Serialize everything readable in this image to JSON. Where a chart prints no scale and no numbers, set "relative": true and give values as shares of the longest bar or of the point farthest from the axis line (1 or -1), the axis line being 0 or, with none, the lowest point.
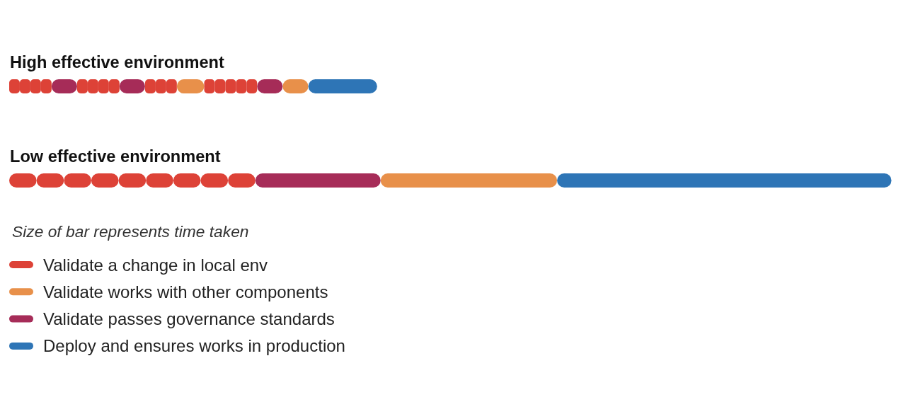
{
  "chart_data": {
    "type": "bar",
    "orientation": "horizontal",
    "relative": true,
    "stacked": true,
    "categories": [
      "High effective environment",
      "Low effective environment"
    ],
    "series": [
      {
        "name": "Validate a change in local env",
        "color": "#dd4237",
        "values": [
          0.012,
          0.031
        ]
      },
      {
        "color": "#dd4237",
        "values": [
          0.012,
          0.031
        ]
      },
      {
        "color": "#dd4237",
        "values": [
          0.012,
          0.031
        ]
      },
      {
        "color": "#dd4237",
        "values": [
          0.012,
          0.031
        ]
      },
      {
        "color": "#a62c58",
        "values": [
          0.029,
          null
        ]
      },
      {
        "color": "#dd4237",
        "values": [
          0.012,
          0.031
        ]
      },
      {
        "color": "#dd4237",
        "values": [
          0.012,
          0.031
        ]
      },
      {
        "color": "#dd4237",
        "values": [
          0.012,
          0.031
        ]
      },
      {
        "color": "#dd4237",
        "values": [
          0.012,
          0.031
        ]
      },
      {
        "color": "#a62c58",
        "values": [
          0.029,
          null
        ]
      },
      {
        "color": "#dd4237",
        "values": [
          0.012,
          0.031
        ]
      },
      {
        "color": "#dd4237",
        "values": [
          0.012,
          null
        ]
      },
      {
        "color": "#dd4237",
        "values": [
          0.012,
          null
        ]
      },
      {
        "name": "Validate works with other components",
        "color": "#e8904a",
        "values": [
          0.031,
          null
        ]
      },
      {
        "color": "#dd4237",
        "values": [
          0.012,
          null
        ]
      },
      {
        "color": "#dd4237",
        "values": [
          0.012,
          null
        ]
      },
      {
        "color": "#dd4237",
        "values": [
          0.012,
          null
        ]
      },
      {
        "color": "#dd4237",
        "values": [
          0.012,
          null
        ]
      },
      {
        "color": "#dd4237",
        "values": [
          0.012,
          null
        ]
      },
      {
        "name": "Validate passes governance standards",
        "color": "#a62c58",
        "values": [
          0.029,
          0.142
        ]
      },
      {
        "color": "#e8904a",
        "values": [
          0.029,
          0.2
        ]
      },
      {
        "name": "Deploy and ensures works in production",
        "color": "#2e75b6",
        "values": [
          0.078,
          0.379
        ]
      }
    ],
    "legend": "bottom left",
    "annotations": [
      "Size of bar represents time taken"
    ]
  }
}
